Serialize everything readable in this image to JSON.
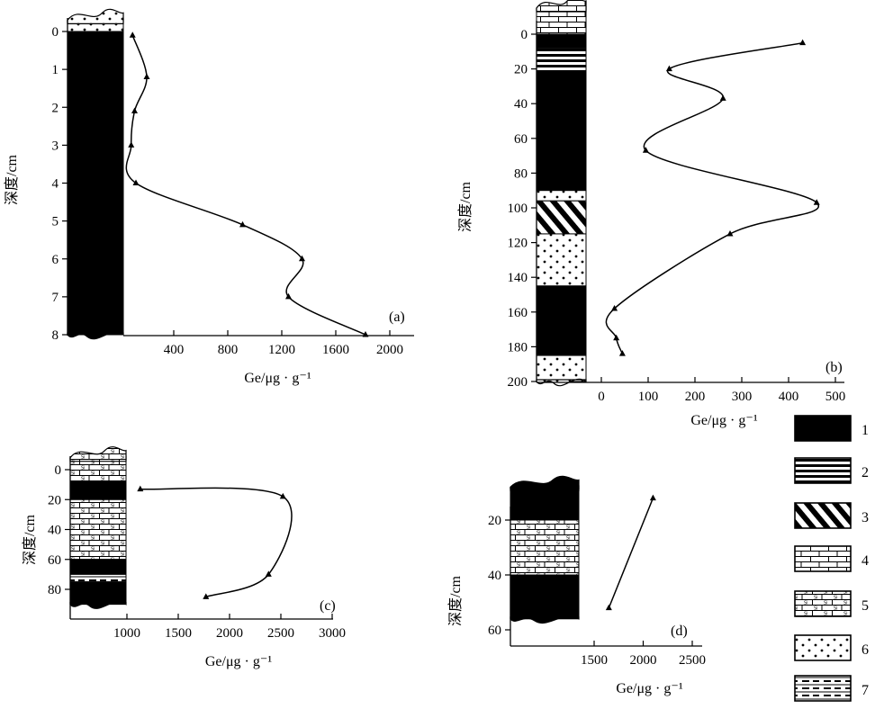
{
  "colors": {
    "ink": "#000000",
    "paper": "#ffffff"
  },
  "chart_data": [
    {
      "panel": "(a)",
      "type": "line",
      "xlabel": "Ge/μg · g⁻¹",
      "ylabel": "深度/cm",
      "xlim": [
        0,
        2150
      ],
      "ylim": [
        8,
        0
      ],
      "y_reversed": true,
      "xticks": [
        400,
        800,
        1200,
        1600,
        2000
      ],
      "yticks": [
        0,
        1,
        2,
        3,
        4,
        5,
        6,
        7,
        8
      ],
      "points": [
        [
          95,
          0.1
        ],
        [
          200,
          1.2
        ],
        [
          110,
          2.1
        ],
        [
          85,
          3.0
        ],
        [
          120,
          4.0
        ],
        [
          910,
          5.1
        ],
        [
          1350,
          6.0
        ],
        [
          1250,
          7.0
        ],
        [
          1820,
          8.0
        ]
      ],
      "column": [
        {
          "lith": 6,
          "from": -0.3,
          "to": 0.0
        },
        {
          "lith": 1,
          "from": 0.0,
          "to": 8.0
        }
      ]
    },
    {
      "panel": "(b)",
      "type": "line",
      "xlabel": "Ge/μg · g⁻¹",
      "ylabel": "深度/cm",
      "xlim": [
        -50,
        500
      ],
      "ylim": [
        200,
        0
      ],
      "y_reversed": true,
      "xticks": [
        0,
        100,
        200,
        300,
        400,
        500
      ],
      "yticks": [
        0,
        20,
        40,
        60,
        80,
        100,
        120,
        140,
        160,
        180,
        200
      ],
      "points": [
        [
          430,
          5
        ],
        [
          145,
          20
        ],
        [
          260,
          37
        ],
        [
          95,
          67
        ],
        [
          460,
          97
        ],
        [
          275,
          115
        ],
        [
          28,
          158
        ],
        [
          32,
          175
        ],
        [
          45,
          184
        ]
      ],
      "column": [
        {
          "lith": 4,
          "from": -15,
          "to": 0
        },
        {
          "lith": 1,
          "from": 0,
          "to": 8
        },
        {
          "lith": 2,
          "from": 8,
          "to": 22
        },
        {
          "lith": 1,
          "from": 22,
          "to": 90
        },
        {
          "lith": 6,
          "from": 90,
          "to": 96
        },
        {
          "lith": 3,
          "from": 96,
          "to": 115
        },
        {
          "lith": 6,
          "from": 115,
          "to": 145
        },
        {
          "lith": 1,
          "from": 145,
          "to": 185
        },
        {
          "lith": 6,
          "from": 185,
          "to": 200
        }
      ]
    },
    {
      "panel": "(c)",
      "type": "line",
      "xlabel": "Ge/μg · g⁻¹",
      "ylabel": "深度/cm",
      "xlim": [
        500,
        3000
      ],
      "ylim": [
        100,
        -10
      ],
      "y_reversed": true,
      "xticks": [
        1000,
        1500,
        2000,
        2500,
        3000
      ],
      "yticks": [
        0,
        20,
        40,
        60,
        80
      ],
      "points": [
        [
          1130,
          13
        ],
        [
          2520,
          18
        ],
        [
          2380,
          70
        ],
        [
          1770,
          85
        ]
      ],
      "column": [
        {
          "lith": 5,
          "from": -8,
          "to": 8
        },
        {
          "lith": 1,
          "from": 8,
          "to": 20
        },
        {
          "lith": 5,
          "from": 20,
          "to": 60
        },
        {
          "lith": 1,
          "from": 60,
          "to": 70
        },
        {
          "lith": 7,
          "from": 70,
          "to": 75
        },
        {
          "lith": 1,
          "from": 75,
          "to": 90
        }
      ]
    },
    {
      "panel": "(d)",
      "type": "line",
      "xlabel": "Ge/μg · g⁻¹",
      "ylabel": "深度/cm",
      "xlim": [
        700,
        2500
      ],
      "ylim": [
        60,
        5
      ],
      "y_reversed": true,
      "xticks": [
        1500,
        2000,
        2500
      ],
      "yticks": [
        20,
        40,
        60
      ],
      "points": [
        [
          2100,
          12
        ],
        [
          1650,
          52
        ]
      ],
      "column": [
        {
          "lith": 1,
          "from": 8,
          "to": 20
        },
        {
          "lith": 5,
          "from": 20,
          "to": 40
        },
        {
          "lith": 1,
          "from": 40,
          "to": 56
        }
      ]
    }
  ],
  "legend": [
    {
      "label": "1",
      "lith": 1
    },
    {
      "label": "2",
      "lith": 2
    },
    {
      "label": "3",
      "lith": 3
    },
    {
      "label": "4",
      "lith": 4
    },
    {
      "label": "5",
      "lith": 5
    },
    {
      "label": "6",
      "lith": 6
    },
    {
      "label": "7",
      "lith": 7
    }
  ]
}
